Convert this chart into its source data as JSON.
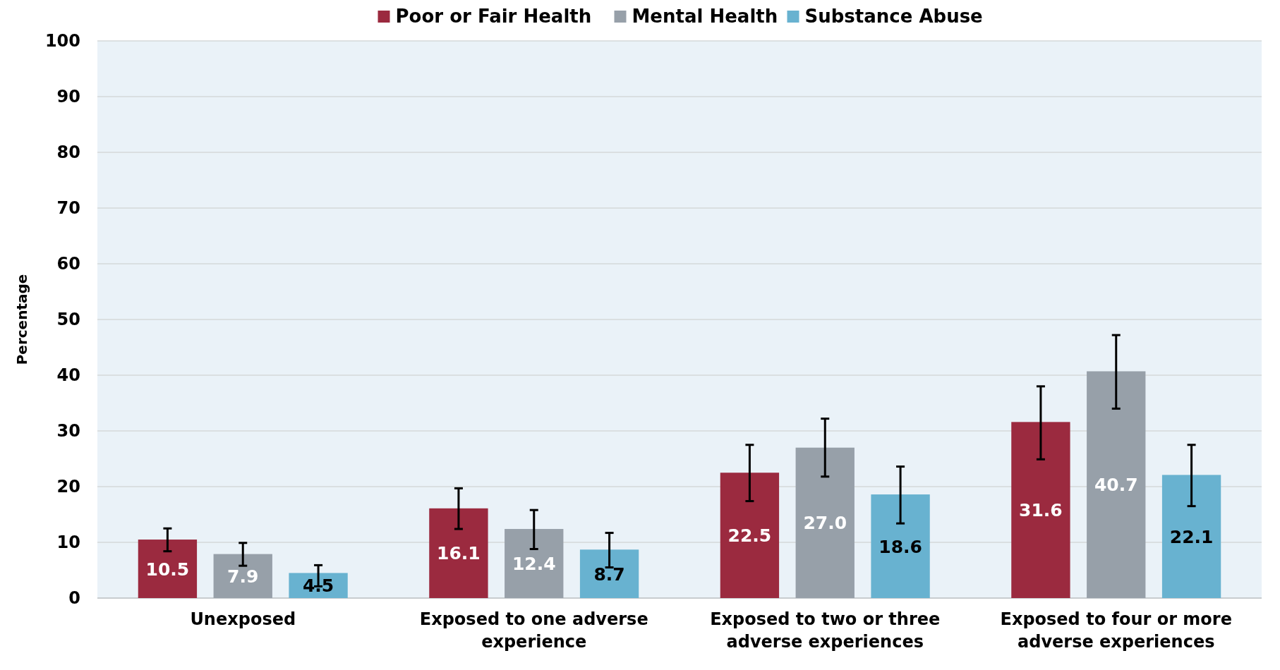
{
  "chart_data": {
    "type": "bar",
    "ylabel": "Percentage",
    "categories": [
      "Unexposed",
      "Exposed to one adverse experience",
      "Exposed to two or three adverse experiences",
      "Exposed to four or more adverse experiences"
    ],
    "series": [
      {
        "name": "Poor or Fair Health",
        "color": "#9b2a3f",
        "values": [
          10.5,
          16.1,
          22.5,
          31.6
        ],
        "value_labels": [
          "10.5",
          "16.1",
          "22.5",
          "31.6"
        ],
        "errors": [
          [
            8.4,
            12.5
          ],
          [
            12.4,
            19.7
          ],
          [
            17.4,
            27.5
          ],
          [
            24.9,
            38.0
          ]
        ]
      },
      {
        "name": "Mental Health",
        "color": "#97a0a9",
        "values": [
          7.9,
          12.4,
          27.0,
          40.7
        ],
        "value_labels": [
          "7.9",
          "12.4",
          "27.0",
          "40.7"
        ],
        "errors": [
          [
            5.8,
            9.9
          ],
          [
            8.8,
            15.8
          ],
          [
            21.8,
            32.2
          ],
          [
            34.0,
            47.2
          ]
        ]
      },
      {
        "name": "Substance Abuse",
        "color": "#68b2d0",
        "values": [
          4.5,
          8.7,
          18.6,
          22.1
        ],
        "value_labels": [
          "4.5",
          "8.7",
          "18.6",
          "22.1"
        ],
        "errors": [
          [
            2.1,
            5.9
          ],
          [
            5.5,
            11.7
          ],
          [
            13.4,
            23.6
          ],
          [
            16.5,
            27.5
          ]
        ]
      }
    ],
    "ylim": [
      0,
      100
    ],
    "yticks": [
      0,
      10,
      20,
      30,
      40,
      50,
      60,
      70,
      80,
      90,
      100
    ],
    "grid": "y",
    "legend": "top"
  }
}
